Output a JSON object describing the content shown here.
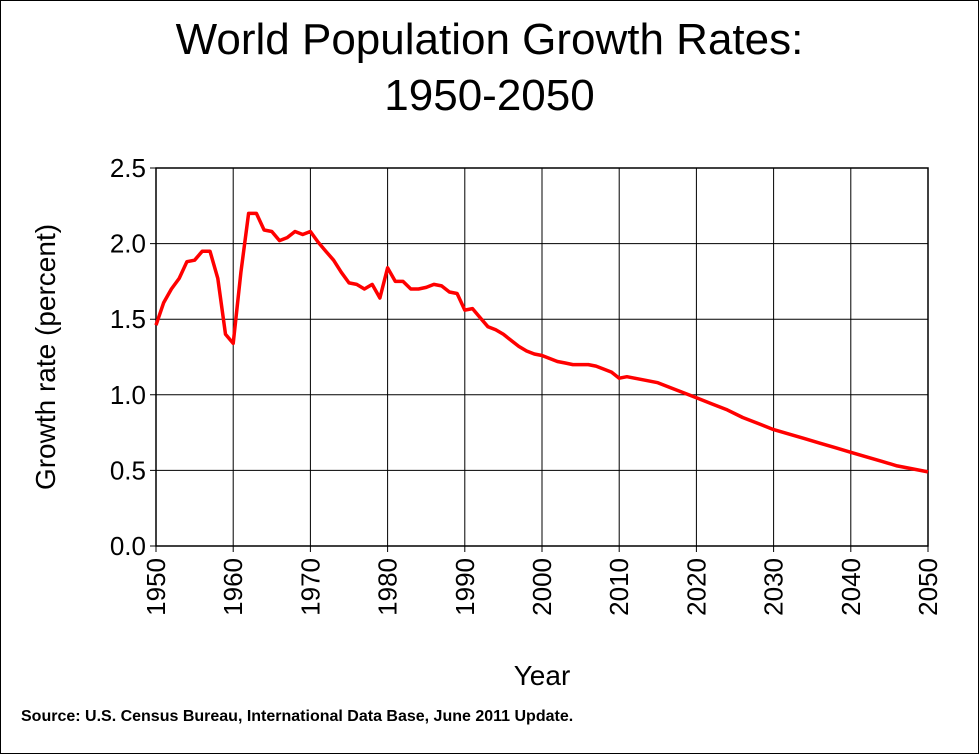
{
  "chart_data": {
    "type": "line",
    "title": "World Population Growth Rates:",
    "subtitle": "1950-2050",
    "xlabel": "Year",
    "ylabel": "Growth rate (percent)",
    "xlim": [
      1950,
      2050
    ],
    "ylim": [
      0,
      2.5
    ],
    "x_ticks": [
      "1950",
      "1960",
      "1970",
      "1980",
      "1990",
      "2000",
      "2010",
      "2020",
      "2030",
      "2040",
      "2050"
    ],
    "y_ticks": [
      "0.0",
      "0.5",
      "1.0",
      "1.5",
      "2.0",
      "2.5"
    ],
    "grid": true,
    "line_color": "#ff0000",
    "series": [
      {
        "x": [
          1950,
          1951,
          1952,
          1953,
          1954,
          1955,
          1956,
          1957,
          1958,
          1959,
          1960,
          1961,
          1962,
          1963,
          1964,
          1965,
          1966,
          1967,
          1968,
          1969,
          1970,
          1971,
          1972,
          1973,
          1974,
          1975,
          1976,
          1977,
          1978,
          1979,
          1980,
          1981,
          1982,
          1983,
          1984,
          1985,
          1986,
          1987,
          1988,
          1989,
          1990,
          1991,
          1992,
          1993,
          1994,
          1995,
          1996,
          1997,
          1998,
          1999,
          2000,
          2001,
          2002,
          2003,
          2004,
          2005,
          2006,
          2007,
          2008,
          2009,
          2010,
          2011,
          2012,
          2013,
          2014,
          2015,
          2016,
          2017,
          2018,
          2019,
          2020,
          2022,
          2024,
          2026,
          2028,
          2030,
          2032,
          2034,
          2036,
          2038,
          2040,
          2042,
          2044,
          2046,
          2048,
          2050
        ],
        "values": [
          1.46,
          1.61,
          1.7,
          1.77,
          1.88,
          1.89,
          1.95,
          1.95,
          1.77,
          1.4,
          1.34,
          1.81,
          2.2,
          2.2,
          2.09,
          2.08,
          2.02,
          2.04,
          2.08,
          2.06,
          2.08,
          2.01,
          1.95,
          1.89,
          1.81,
          1.74,
          1.73,
          1.7,
          1.73,
          1.64,
          1.84,
          1.75,
          1.75,
          1.7,
          1.7,
          1.71,
          1.73,
          1.72,
          1.68,
          1.67,
          1.56,
          1.57,
          1.51,
          1.45,
          1.43,
          1.4,
          1.36,
          1.32,
          1.29,
          1.27,
          1.26,
          1.24,
          1.22,
          1.21,
          1.2,
          1.2,
          1.2,
          1.19,
          1.17,
          1.15,
          1.11,
          1.12,
          1.11,
          1.1,
          1.09,
          1.08,
          1.06,
          1.04,
          1.02,
          1.0,
          0.98,
          0.94,
          0.9,
          0.85,
          0.81,
          0.77,
          0.74,
          0.71,
          0.68,
          0.65,
          0.62,
          0.59,
          0.56,
          0.53,
          0.51,
          0.49
        ]
      }
    ]
  },
  "source": "Source: U.S. Census Bureau, International Data Base, June 2011 Update."
}
